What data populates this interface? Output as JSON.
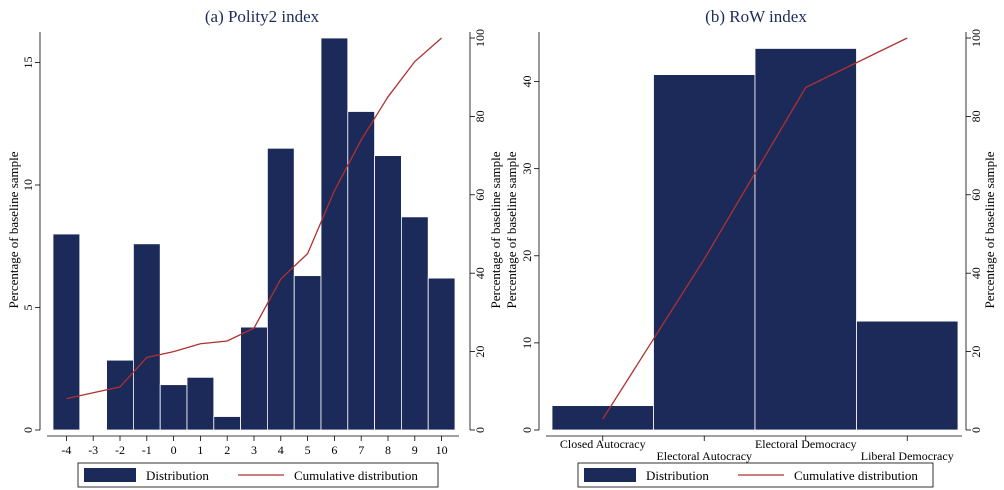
{
  "chart_data": [
    {
      "type": "bar",
      "title": "(a) Polity2 index",
      "xlabel": "",
      "ylabel": "Percentage of baseline sample",
      "ylabel_right": "Percentage of baseline sample",
      "categories": [
        "-4",
        "-3",
        "-2",
        "-1",
        "0",
        "1",
        "2",
        "3",
        "4",
        "5",
        "6",
        "7",
        "8",
        "9",
        "10"
      ],
      "series": [
        {
          "name": "Distribution",
          "type": "bar",
          "axis": "left",
          "values": [
            8.0,
            0,
            2.85,
            7.6,
            1.85,
            2.15,
            0.55,
            4.2,
            11.5,
            6.3,
            16.0,
            13.0,
            11.2,
            8.7,
            6.2
          ]
        },
        {
          "name": "Cumulative distribution",
          "type": "line",
          "axis": "right",
          "values": [
            8,
            9.5,
            11,
            18.5,
            20,
            22,
            22.7,
            26,
            38.5,
            45,
            61,
            74,
            85,
            94,
            100
          ]
        }
      ],
      "ylim_left": [
        0,
        16
      ],
      "yticks_left": [
        "0",
        "5",
        "10",
        "15"
      ],
      "ylim_right": [
        0,
        100
      ],
      "yticks_right": [
        "0",
        "20",
        "40",
        "60",
        "80",
        "100"
      ],
      "legend": "bottom",
      "grid": false,
      "colors": {
        "bar": "#1c2a5a",
        "line": "#b03030"
      }
    },
    {
      "type": "bar",
      "title": "(b) RoW index",
      "xlabel": "",
      "ylabel": "Percentage of baseline sample",
      "ylabel_right": "Percentage of baseline sample",
      "categories": [
        "Closed Autocracy",
        "Electoral Autocracy",
        "Electoral Democracy",
        "Liberal Democracy"
      ],
      "series": [
        {
          "name": "Distribution",
          "type": "bar",
          "axis": "left",
          "values": [
            2.8,
            40.8,
            43.8,
            12.5
          ]
        },
        {
          "name": "Cumulative distribution",
          "type": "line",
          "axis": "right",
          "values": [
            2.8,
            43.6,
            87.4,
            100
          ]
        }
      ],
      "ylim_left": [
        0,
        45
      ],
      "yticks_left": [
        "0",
        "10",
        "20",
        "30",
        "40"
      ],
      "ylim_right": [
        0,
        100
      ],
      "yticks_right": [
        "0",
        "20",
        "40",
        "60",
        "80",
        "100"
      ],
      "legend": "bottom",
      "grid": false,
      "colors": {
        "bar": "#1c2a5a",
        "line": "#b03030"
      }
    }
  ]
}
